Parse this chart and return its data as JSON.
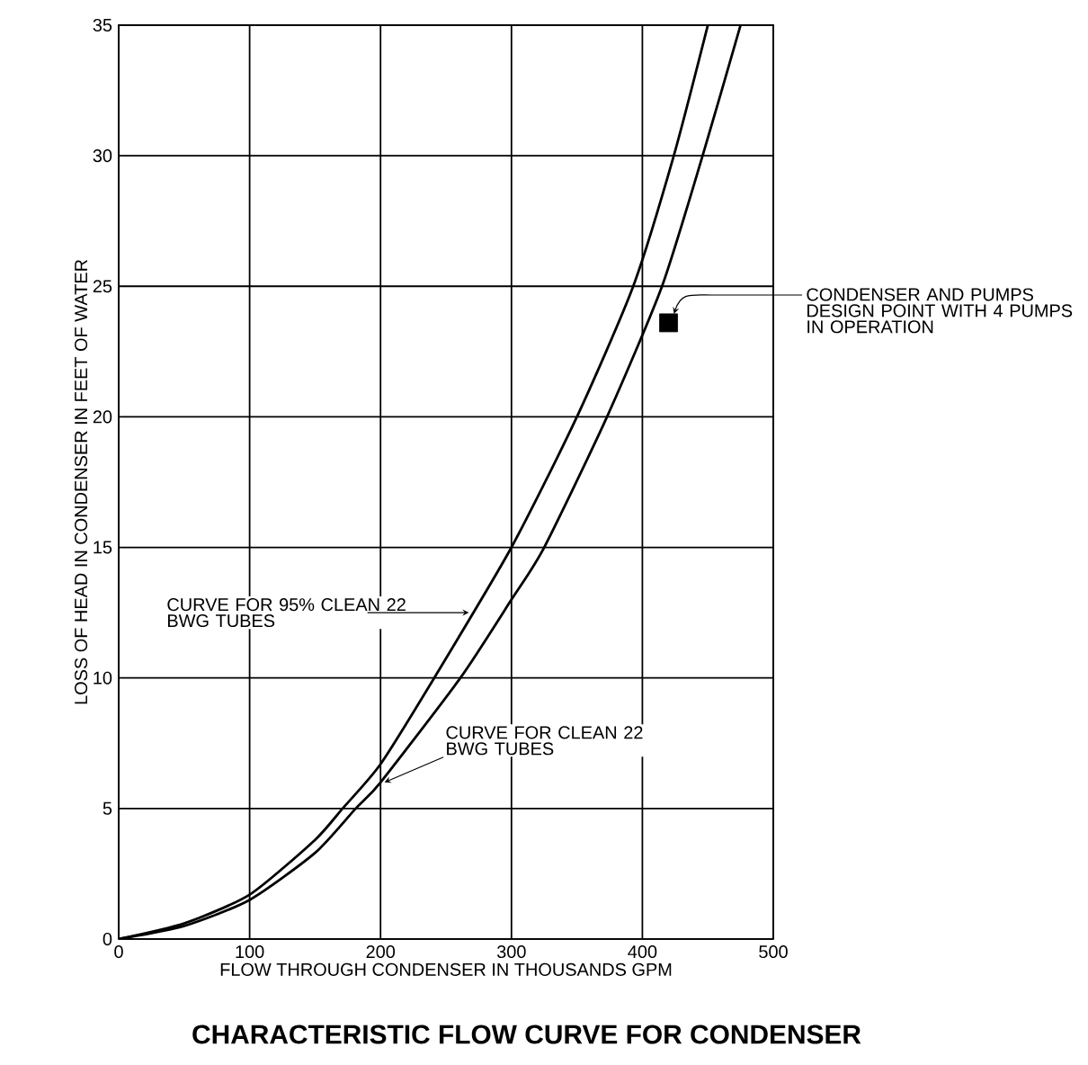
{
  "chart_data": {
    "type": "line",
    "title": "CHARACTERISTIC FLOW CURVE FOR CONDENSER",
    "xlabel": "FLOW THROUGH CONDENSER IN THOUSANDS GPM",
    "ylabel": "LOSS OF HEAD IN CONDENSER IN FEET OF WATER",
    "xlim": [
      0,
      500
    ],
    "ylim": [
      0,
      35
    ],
    "xticks": [
      0,
      100,
      200,
      300,
      400,
      500
    ],
    "yticks": [
      0,
      5,
      10,
      15,
      20,
      25,
      30,
      35
    ],
    "grid": true,
    "legend": false,
    "marker": "none",
    "line_style": "solid",
    "series": [
      {
        "name": "CURVE FOR 95% CLEAN 22 BWG TUBES",
        "color": "#000000",
        "x": [
          0,
          50,
          100,
          150,
          171,
          200,
          241,
          300,
          350,
          393,
          424,
          450
        ],
        "values": [
          0,
          0.6,
          1.7,
          3.8,
          5,
          6.7,
          10,
          15,
          20,
          25,
          30,
          35
        ]
      },
      {
        "name": "CURVE FOR CLEAN 22 BWG TUBES",
        "color": "#000000",
        "x": [
          0,
          50,
          100,
          150,
          181,
          200,
          261,
          300,
          325,
          373,
          415,
          446,
          475
        ],
        "values": [
          0,
          0.5,
          1.5,
          3.3,
          5,
          6.0,
          10,
          13,
          15,
          20,
          25,
          30,
          35
        ]
      },
      {
        "type": "scatter",
        "marker": "square",
        "color": "#000000",
        "x": [
          420
        ],
        "values": [
          23.6
        ]
      }
    ],
    "annotations": [
      {
        "text": "CONDENSER AND PUMPS DESIGN POINT WITH 4 PUMPS IN OPERATION",
        "x": 420,
        "y": 23.6
      }
    ]
  }
}
